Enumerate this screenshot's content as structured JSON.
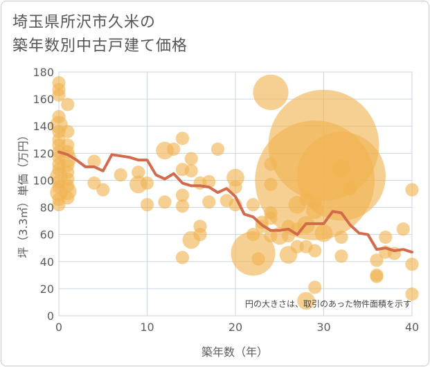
{
  "chart_data": {
    "type": "scatter",
    "title": [
      "埼玉県所沢市久米の",
      "築年数別中古戸建て価格"
    ],
    "xlabel": "築年数（年）",
    "ylabel": "坪（3.3㎡）単価（万円）",
    "xlim": [
      0,
      40
    ],
    "ylim": [
      0,
      180
    ],
    "xticks": [
      0,
      10,
      20,
      30,
      40
    ],
    "yticks": [
      0,
      20,
      40,
      60,
      80,
      100,
      120,
      140,
      160,
      180
    ],
    "grid": true,
    "annotation": "円の大きさは、取引のあった物件面積を示す",
    "colors": {
      "bubble": "#f0b350",
      "line": "#d26a4c",
      "grid": "#c9d5e1"
    },
    "bubbles": [
      {
        "x": 0,
        "y": 172,
        "s": 3
      },
      {
        "x": 0,
        "y": 167,
        "s": 3
      },
      {
        "x": 0,
        "y": 163,
        "s": 3
      },
      {
        "x": 0,
        "y": 147,
        "s": 3
      },
      {
        "x": 0,
        "y": 141,
        "s": 4
      },
      {
        "x": 0,
        "y": 136,
        "s": 3
      },
      {
        "x": 0,
        "y": 130,
        "s": 3
      },
      {
        "x": 0,
        "y": 126,
        "s": 3
      },
      {
        "x": 0,
        "y": 121,
        "s": 3
      },
      {
        "x": 0,
        "y": 117,
        "s": 3
      },
      {
        "x": 0,
        "y": 112,
        "s": 3
      },
      {
        "x": 0,
        "y": 108,
        "s": 3
      },
      {
        "x": 0,
        "y": 103,
        "s": 4
      },
      {
        "x": 0,
        "y": 99,
        "s": 3
      },
      {
        "x": 0,
        "y": 95,
        "s": 3
      },
      {
        "x": 0,
        "y": 91,
        "s": 4
      },
      {
        "x": 0,
        "y": 86,
        "s": 3
      },
      {
        "x": 0,
        "y": 82,
        "s": 3
      },
      {
        "x": 1,
        "y": 156,
        "s": 3
      },
      {
        "x": 1,
        "y": 136,
        "s": 3
      },
      {
        "x": 1,
        "y": 126,
        "s": 3
      },
      {
        "x": 1,
        "y": 121,
        "s": 3
      },
      {
        "x": 1,
        "y": 116,
        "s": 4
      },
      {
        "x": 1,
        "y": 111,
        "s": 3
      },
      {
        "x": 1,
        "y": 106,
        "s": 3
      },
      {
        "x": 1,
        "y": 101,
        "s": 3
      },
      {
        "x": 1,
        "y": 96,
        "s": 3
      },
      {
        "x": 1,
        "y": 92,
        "s": 4
      },
      {
        "x": 1,
        "y": 87,
        "s": 3
      },
      {
        "x": 4,
        "y": 114,
        "s": 3
      },
      {
        "x": 4,
        "y": 98,
        "s": 3
      },
      {
        "x": 5,
        "y": 93,
        "s": 3
      },
      {
        "x": 7,
        "y": 104,
        "s": 3
      },
      {
        "x": 9,
        "y": 106,
        "s": 3
      },
      {
        "x": 9,
        "y": 97,
        "s": 4
      },
      {
        "x": 10,
        "y": 98,
        "s": 3
      },
      {
        "x": 10,
        "y": 82,
        "s": 3
      },
      {
        "x": 12,
        "y": 122,
        "s": 4
      },
      {
        "x": 12,
        "y": 84,
        "s": 3
      },
      {
        "x": 13,
        "y": 123,
        "s": 3
      },
      {
        "x": 14,
        "y": 131,
        "s": 3
      },
      {
        "x": 14,
        "y": 108,
        "s": 3
      },
      {
        "x": 14,
        "y": 89,
        "s": 3
      },
      {
        "x": 14,
        "y": 81,
        "s": 3
      },
      {
        "x": 14,
        "y": 43,
        "s": 3
      },
      {
        "x": 15,
        "y": 116,
        "s": 3
      },
      {
        "x": 15,
        "y": 107,
        "s": 3
      },
      {
        "x": 15,
        "y": 56,
        "s": 4
      },
      {
        "x": 16,
        "y": 98,
        "s": 3
      },
      {
        "x": 16,
        "y": 66,
        "s": 3
      },
      {
        "x": 16,
        "y": 60,
        "s": 3
      },
      {
        "x": 17,
        "y": 99,
        "s": 3
      },
      {
        "x": 17,
        "y": 84,
        "s": 3
      },
      {
        "x": 18,
        "y": 123,
        "s": 3
      },
      {
        "x": 19,
        "y": 85,
        "s": 3
      },
      {
        "x": 20,
        "y": 102,
        "s": 4
      },
      {
        "x": 20,
        "y": 95,
        "s": 3
      },
      {
        "x": 20,
        "y": 82,
        "s": 3
      },
      {
        "x": 22,
        "y": 82,
        "s": 3
      },
      {
        "x": 22,
        "y": 60,
        "s": 3
      },
      {
        "x": 22,
        "y": 46,
        "s": 10
      },
      {
        "x": 22.6,
        "y": 42,
        "s": 3
      },
      {
        "x": 23,
        "y": 69,
        "s": 3
      },
      {
        "x": 23,
        "y": 66,
        "s": 3
      },
      {
        "x": 24,
        "y": 165,
        "s": 8
      },
      {
        "x": 24,
        "y": 112,
        "s": 3
      },
      {
        "x": 24,
        "y": 97,
        "s": 3
      },
      {
        "x": 24,
        "y": 76,
        "s": 3
      },
      {
        "x": 24,
        "y": 72,
        "s": 3
      },
      {
        "x": 24,
        "y": 59,
        "s": 3
      },
      {
        "x": 25,
        "y": 59,
        "s": 4
      },
      {
        "x": 26,
        "y": 66,
        "s": 3
      },
      {
        "x": 26,
        "y": 59,
        "s": 3
      },
      {
        "x": 26,
        "y": 45,
        "s": 4
      },
      {
        "x": 27,
        "y": 82,
        "s": 4
      },
      {
        "x": 27,
        "y": 64,
        "s": 3
      },
      {
        "x": 27,
        "y": 51,
        "s": 3
      },
      {
        "x": 28,
        "y": 86,
        "s": 3
      },
      {
        "x": 28,
        "y": 67,
        "s": 4
      },
      {
        "x": 28,
        "y": 51,
        "s": 3
      },
      {
        "x": 28,
        "y": 11,
        "s": 4
      },
      {
        "x": 29,
        "y": 100,
        "s": 27
      },
      {
        "x": 29,
        "y": 83,
        "s": 3
      },
      {
        "x": 29,
        "y": 78,
        "s": 4
      },
      {
        "x": 29,
        "y": 48,
        "s": 3
      },
      {
        "x": 29,
        "y": 21,
        "s": 3
      },
      {
        "x": 30,
        "y": 126,
        "s": 25
      },
      {
        "x": 30,
        "y": 61,
        "s": 4
      },
      {
        "x": 32,
        "y": 103,
        "s": 20
      },
      {
        "x": 32,
        "y": 109,
        "s": 4
      },
      {
        "x": 32,
        "y": 58,
        "s": 3
      },
      {
        "x": 32,
        "y": 44,
        "s": 3
      },
      {
        "x": 33,
        "y": 94,
        "s": 3
      },
      {
        "x": 36,
        "y": 41,
        "s": 3
      },
      {
        "x": 36,
        "y": 30,
        "s": 3
      },
      {
        "x": 36,
        "y": 29,
        "s": 3
      },
      {
        "x": 37,
        "y": 58,
        "s": 3
      },
      {
        "x": 37,
        "y": 47,
        "s": 3
      },
      {
        "x": 38,
        "y": 46,
        "s": 3
      },
      {
        "x": 39,
        "y": 64,
        "s": 3
      },
      {
        "x": 40,
        "y": 93,
        "s": 3
      },
      {
        "x": 40,
        "y": 38,
        "s": 3
      },
      {
        "x": 40,
        "y": 16,
        "s": 3
      }
    ],
    "trend": {
      "x": [
        0,
        1,
        2,
        3,
        4,
        5,
        6,
        7,
        8,
        9,
        10,
        11,
        12,
        13,
        14,
        15,
        16,
        17,
        18,
        19,
        20,
        21,
        22,
        23,
        24,
        25,
        26,
        27,
        28,
        29,
        30,
        31,
        32,
        33,
        34,
        35,
        36,
        37,
        38,
        39,
        40
      ],
      "y": [
        121,
        119,
        115,
        110,
        110,
        107,
        119,
        118,
        117,
        115,
        115,
        104,
        101,
        105,
        98,
        96,
        96,
        95,
        91,
        94,
        88,
        75,
        73,
        67,
        63,
        63,
        64,
        60,
        68,
        68,
        68,
        77,
        76,
        67,
        61,
        60,
        49,
        50,
        48,
        49,
        47
      ]
    }
  }
}
